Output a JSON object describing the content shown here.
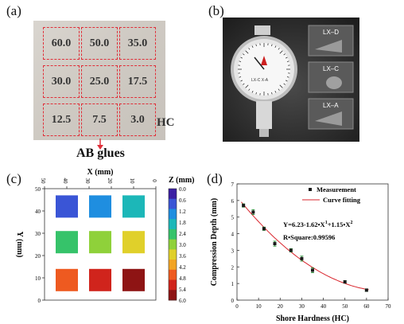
{
  "panels": {
    "a": "(a)",
    "b": "(b)",
    "c": "(c)",
    "d": "(d)"
  },
  "panel_a": {
    "grid": [
      [
        "60.0",
        "50.0",
        "35.0"
      ],
      [
        "30.0",
        "25.0",
        "17.5"
      ],
      [
        "12.5",
        "7.5",
        "3.0"
      ]
    ],
    "hc_label": "HC",
    "ab_label": "AB glues"
  },
  "panel_b": {
    "tips": [
      "LX–D",
      "LX–C",
      "LX–A"
    ],
    "gauge_text": "LX-C  X-A",
    "colors": {
      "background": "#2b2b2b",
      "dial": "#f2f2f2",
      "tip_box": "#5a5a5a",
      "red": "#cc1f1f"
    }
  },
  "chart_data": [
    {
      "type": "heatmap",
      "xlabel": "X (mm)",
      "ylabel": "Y (mm)",
      "zlabel": "Z (mm)",
      "x_ticks": [
        50,
        40,
        30,
        20,
        10,
        0
      ],
      "y_ticks": [
        0,
        10,
        20,
        30,
        40,
        50
      ],
      "xlim": [
        50,
        0
      ],
      "ylim": [
        0,
        50
      ],
      "colorbar_ticks": [
        "0.0",
        "0.6",
        "1.2",
        "1.8",
        "2.4",
        "3.0",
        "3.6",
        "4.2",
        "4.8",
        "5.4",
        "6.0"
      ],
      "zlim": [
        0,
        6
      ],
      "colormap": [
        "#3b1fa3",
        "#3a55d6",
        "#1f8ee0",
        "#1cb7b8",
        "#36c36a",
        "#8fd13a",
        "#e0d02a",
        "#f2a424",
        "#ee5a20",
        "#d0241c",
        "#8e1414"
      ],
      "squares": [
        {
          "row": "top",
          "col": "left",
          "z": 0.4
        },
        {
          "row": "top",
          "col": "middle",
          "z": 1.0
        },
        {
          "row": "top",
          "col": "right",
          "z": 1.8
        },
        {
          "row": "middle",
          "col": "left",
          "z": 2.4
        },
        {
          "row": "middle",
          "col": "middle",
          "z": 3.2
        },
        {
          "row": "middle",
          "col": "right",
          "z": 3.4
        },
        {
          "row": "bottom",
          "col": "left",
          "z": 4.6
        },
        {
          "row": "bottom",
          "col": "middle",
          "z": 5.4
        },
        {
          "row": "bottom",
          "col": "right",
          "z": 5.8
        }
      ]
    },
    {
      "type": "scatter",
      "xlabel": "Shore Hardness (HC)",
      "ylabel": "Compression Depth (mm)",
      "xlim": [
        0,
        70
      ],
      "ylim": [
        0,
        7
      ],
      "x_ticks": [
        0,
        10,
        20,
        30,
        40,
        50,
        60,
        70
      ],
      "y_ticks": [
        0,
        1,
        2,
        3,
        4,
        5,
        6,
        7
      ],
      "series": [
        {
          "name": "Measurement",
          "x": [
            3,
            7.5,
            12.5,
            17.5,
            25,
            30,
            35,
            50,
            60
          ],
          "y": [
            5.7,
            5.3,
            4.3,
            3.4,
            3.0,
            2.5,
            1.8,
            1.1,
            0.6
          ],
          "err": [
            0.1,
            0.15,
            0.1,
            0.15,
            0.1,
            0.15,
            0.15,
            0.08,
            0.08
          ]
        },
        {
          "name": "Curve fitting",
          "fit": {
            "a": 6.23,
            "b": -1.62,
            "c": 1.15
          }
        }
      ],
      "annotation": "Y=6.23-1.62•X",
      "annotation_sup1": "1",
      "annotation_mid": "+1.15•X",
      "annotation_sup2": "2",
      "rsquare": "R•Square:0.99596",
      "legend_position": "top-right",
      "colors": {
        "marker": "#1a1a1a",
        "curve": "#d9262e",
        "errbar": "#1a8a2a"
      }
    }
  ]
}
